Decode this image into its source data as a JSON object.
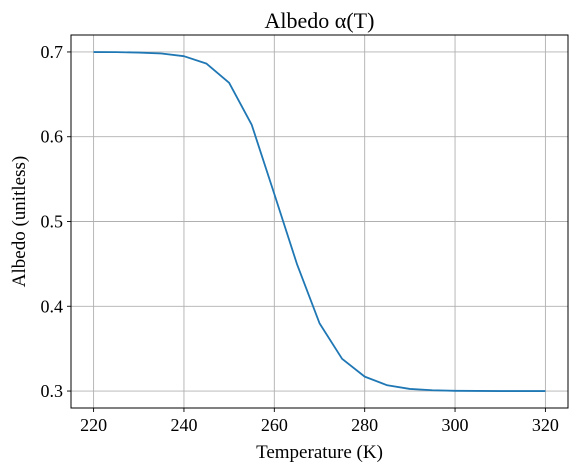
{
  "chart_data": {
    "type": "line",
    "title": "Albedo α(T)",
    "xlabel": "Temperature (K)",
    "ylabel": "Albedo (unitless)",
    "xlim": [
      215,
      325
    ],
    "ylim": [
      0.28,
      0.72
    ],
    "xticks": [
      220,
      240,
      260,
      280,
      300,
      320
    ],
    "xtick_labels": [
      "220",
      "240",
      "260",
      "280",
      "300",
      "320"
    ],
    "yticks": [
      0.3,
      0.4,
      0.5,
      0.6,
      0.7
    ],
    "ytick_labels": [
      "0.3",
      "0.4",
      "0.5",
      "0.6",
      "0.7"
    ],
    "grid": true,
    "series": [
      {
        "color": "#1f77b4",
        "x": [
          220,
          225,
          230,
          235,
          240,
          245,
          250,
          255,
          260,
          265,
          270,
          275,
          280,
          285,
          290,
          295,
          300,
          305,
          310,
          315,
          320
        ],
        "y": [
          0.6999,
          0.6998,
          0.6993,
          0.6982,
          0.695,
          0.6862,
          0.6636,
          0.614,
          0.5324,
          0.45,
          0.38,
          0.338,
          0.317,
          0.3068,
          0.3025,
          0.3009,
          0.3003,
          0.3001,
          0.3,
          0.3,
          0.3
        ]
      }
    ]
  }
}
